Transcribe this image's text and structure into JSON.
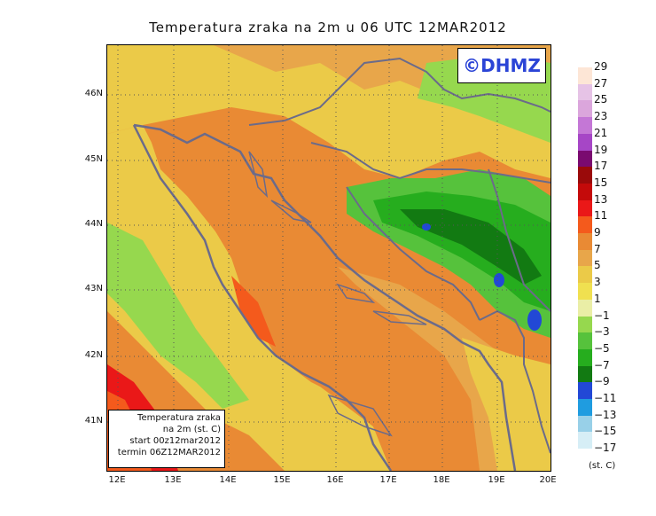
{
  "title": "Temperatura zraka na 2m u 06 UTC 12MAR2012",
  "copyright": "©DHMZ",
  "info": {
    "line1": "Temperatura zraka",
    "line2": "na 2m (st. C)",
    "line3": "start 00z12mar2012",
    "line4": "termin 06Z12MAR2012"
  },
  "lat_labels": [
    "46N",
    "45N",
    "44N",
    "43N",
    "42N",
    "41N"
  ],
  "lon_labels": [
    "12E",
    "13E",
    "14E",
    "15E",
    "16E",
    "17E",
    "18E",
    "19E",
    "20E"
  ],
  "legend": {
    "units": "(st. C)",
    "labels": [
      "29",
      "27",
      "25",
      "23",
      "21",
      "19",
      "17",
      "15",
      "13",
      "11",
      "9",
      "7",
      "5",
      "3",
      "1",
      "−1",
      "−3",
      "−5",
      "−7",
      "−9",
      "−11",
      "−13",
      "−15",
      "−17"
    ],
    "colors": [
      "#fde6d6",
      "#e6c3e6",
      "#dba6dc",
      "#c477d6",
      "#a646c6",
      "#7a0a70",
      "#9a0a0a",
      "#c40a0a",
      "#ea1818",
      "#f45a1c",
      "#e98a34",
      "#e8a64a",
      "#ebca48",
      "#f0e050",
      "#eaeea6",
      "#96d84e",
      "#56c23c",
      "#26ad1e",
      "#127a12",
      "#2248d6",
      "#1f9ce0",
      "#98d0e8",
      "#d6eef6",
      "#ffffff"
    ]
  }
}
